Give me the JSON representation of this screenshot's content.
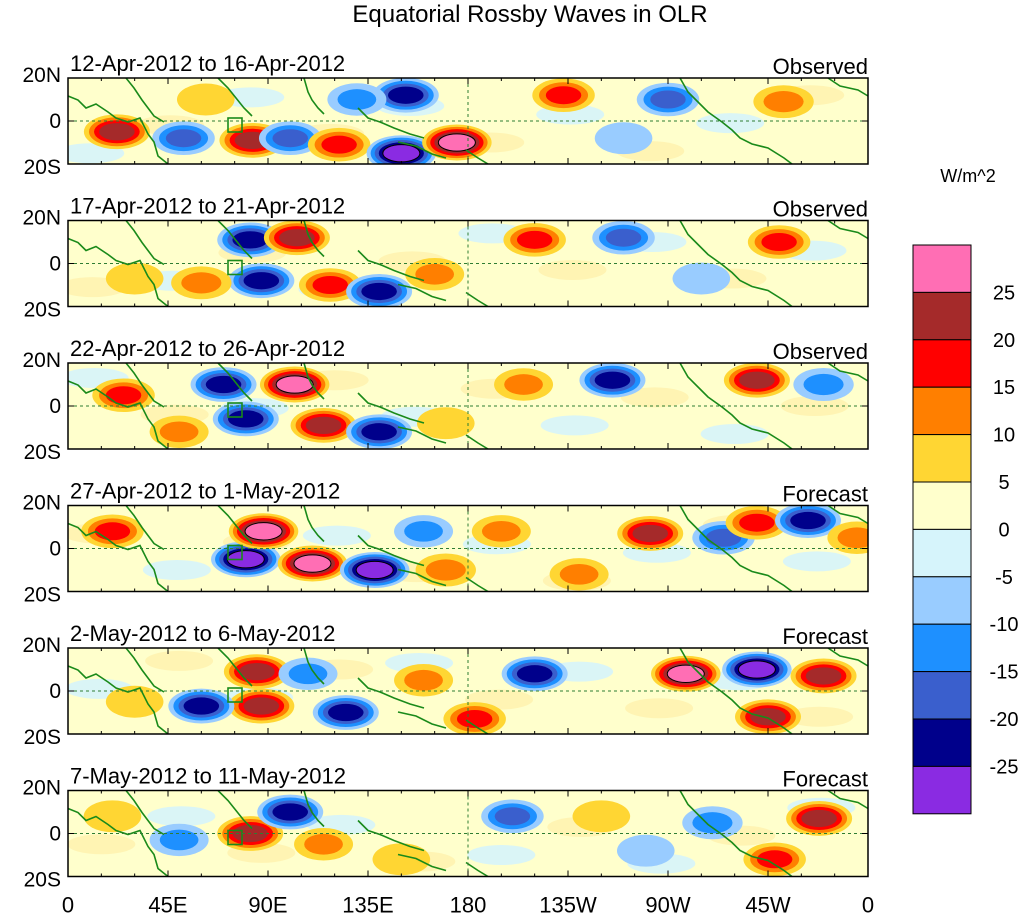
{
  "chart_data": {
    "type": "heatmap",
    "title": "Equatorial Rossby Waves in OLR",
    "units_label": "W/m^2",
    "latitude_ticks": [
      "20N",
      "0",
      "20S"
    ],
    "longitude_ticks": [
      "0",
      "45E",
      "90E",
      "135E",
      "180",
      "135W",
      "90W",
      "45W",
      "0"
    ],
    "longitude_range": [
      0,
      360
    ],
    "latitude_range": [
      -20,
      20
    ],
    "colorbar": {
      "tick_labels": [
        "25",
        "20",
        "15",
        "10",
        "5",
        "0",
        "-5",
        "-10",
        "-15",
        "-20",
        "-25"
      ],
      "colors": [
        "#ff6eb4",
        "#a52a2a",
        "#ff0000",
        "#ff7f00",
        "#ffd633",
        "#ffffcc",
        "#d6f4fb",
        "#99ccff",
        "#1e90ff",
        "#3a5fcd",
        "#00008b",
        "#8a2be2"
      ]
    },
    "panels": [
      {
        "label": "12-Apr-2012 to 16-Apr-2012",
        "status": "Observed",
        "anomalies": [
          {
            "lon": 22,
            "lat": -5,
            "value": 20
          },
          {
            "lon": 52,
            "lat": -8,
            "value": -15
          },
          {
            "lon": 83,
            "lat": -9,
            "value": 20
          },
          {
            "lon": 100,
            "lat": -8,
            "value": -15
          },
          {
            "lon": 122,
            "lat": -11,
            "value": 15
          },
          {
            "lon": 150,
            "lat": -15,
            "value": -25
          },
          {
            "lon": 175,
            "lat": -10,
            "value": 25
          },
          {
            "lon": 152,
            "lat": 12,
            "value": -20
          },
          {
            "lon": 223,
            "lat": 12,
            "value": 15
          },
          {
            "lon": 270,
            "lat": 10,
            "value": -15
          },
          {
            "lon": 322,
            "lat": 9,
            "value": 12
          },
          {
            "lon": 130,
            "lat": 10,
            "value": -10
          },
          {
            "lon": 62,
            "lat": 10,
            "value": 8
          },
          {
            "lon": 250,
            "lat": -8,
            "value": -8
          }
        ]
      },
      {
        "label": "17-Apr-2012 to 21-Apr-2012",
        "status": "Observed",
        "anomalies": [
          {
            "lon": 82,
            "lat": 11,
            "value": -20
          },
          {
            "lon": 103,
            "lat": 12,
            "value": 20
          },
          {
            "lon": 87,
            "lat": -8,
            "value": -20
          },
          {
            "lon": 118,
            "lat": -10,
            "value": 15
          },
          {
            "lon": 140,
            "lat": -13,
            "value": -20
          },
          {
            "lon": 210,
            "lat": 11,
            "value": 15
          },
          {
            "lon": 250,
            "lat": 12,
            "value": -15
          },
          {
            "lon": 320,
            "lat": 10,
            "value": 15
          },
          {
            "lon": 30,
            "lat": -7,
            "value": 8
          },
          {
            "lon": 60,
            "lat": -9,
            "value": 12
          },
          {
            "lon": 165,
            "lat": -5,
            "value": 10
          },
          {
            "lon": 285,
            "lat": -7,
            "value": -8
          }
        ]
      },
      {
        "label": "22-Apr-2012 to 26-Apr-2012",
        "status": "Observed",
        "anomalies": [
          {
            "lon": 25,
            "lat": 5,
            "value": 15
          },
          {
            "lon": 70,
            "lat": 10,
            "value": -20
          },
          {
            "lon": 102,
            "lat": 10,
            "value": 25
          },
          {
            "lon": 80,
            "lat": -6,
            "value": -20
          },
          {
            "lon": 115,
            "lat": -9,
            "value": 20
          },
          {
            "lon": 140,
            "lat": -12,
            "value": -20
          },
          {
            "lon": 205,
            "lat": 10,
            "value": 10
          },
          {
            "lon": 245,
            "lat": 12,
            "value": -20
          },
          {
            "lon": 310,
            "lat": 12,
            "value": 20
          },
          {
            "lon": 340,
            "lat": 10,
            "value": -12
          },
          {
            "lon": 50,
            "lat": -12,
            "value": 10
          },
          {
            "lon": 170,
            "lat": -8,
            "value": 8
          }
        ]
      },
      {
        "label": "27-Apr-2012 to 1-May-2012",
        "status": "Forecast",
        "anomalies": [
          {
            "lon": 20,
            "lat": 8,
            "value": 15
          },
          {
            "lon": 80,
            "lat": -5,
            "value": -25
          },
          {
            "lon": 88,
            "lat": 8,
            "value": 25
          },
          {
            "lon": 110,
            "lat": -7,
            "value": 25
          },
          {
            "lon": 138,
            "lat": -10,
            "value": -25
          },
          {
            "lon": 160,
            "lat": 8,
            "value": -10
          },
          {
            "lon": 195,
            "lat": 8,
            "value": 10
          },
          {
            "lon": 262,
            "lat": 7,
            "value": 20
          },
          {
            "lon": 295,
            "lat": 5,
            "value": -15
          },
          {
            "lon": 310,
            "lat": 12,
            "value": 15
          },
          {
            "lon": 333,
            "lat": 13,
            "value": -20
          },
          {
            "lon": 170,
            "lat": -10,
            "value": 12
          },
          {
            "lon": 230,
            "lat": -12,
            "value": 10
          },
          {
            "lon": 355,
            "lat": 5,
            "value": 10
          }
        ]
      },
      {
        "label": "2-May-2012 to 6-May-2012",
        "status": "Forecast",
        "anomalies": [
          {
            "lon": 85,
            "lat": 9,
            "value": 20
          },
          {
            "lon": 87,
            "lat": -7,
            "value": 20
          },
          {
            "lon": 60,
            "lat": -7,
            "value": -20
          },
          {
            "lon": 125,
            "lat": -10,
            "value": -20
          },
          {
            "lon": 108,
            "lat": 8,
            "value": -10
          },
          {
            "lon": 160,
            "lat": 5,
            "value": 10
          },
          {
            "lon": 183,
            "lat": -13,
            "value": 15
          },
          {
            "lon": 210,
            "lat": 8,
            "value": -20
          },
          {
            "lon": 278,
            "lat": 8,
            "value": 25
          },
          {
            "lon": 310,
            "lat": 10,
            "value": -25
          },
          {
            "lon": 340,
            "lat": 7,
            "value": 20
          },
          {
            "lon": 315,
            "lat": -12,
            "value": 20
          },
          {
            "lon": 30,
            "lat": -5,
            "value": 8
          }
        ]
      },
      {
        "label": "7-May-2012 to 11-May-2012",
        "status": "Forecast",
        "anomalies": [
          {
            "lon": 82,
            "lat": 0,
            "value": 20
          },
          {
            "lon": 100,
            "lat": 10,
            "value": -20
          },
          {
            "lon": 115,
            "lat": -5,
            "value": 10
          },
          {
            "lon": 50,
            "lat": -3,
            "value": -10
          },
          {
            "lon": 200,
            "lat": 8,
            "value": -15
          },
          {
            "lon": 240,
            "lat": 8,
            "value": 8
          },
          {
            "lon": 290,
            "lat": 5,
            "value": -12
          },
          {
            "lon": 318,
            "lat": -12,
            "value": 15
          },
          {
            "lon": 338,
            "lat": 7,
            "value": 20
          },
          {
            "lon": 150,
            "lat": -12,
            "value": 8
          },
          {
            "lon": 260,
            "lat": -8,
            "value": -8
          },
          {
            "lon": 20,
            "lat": 8,
            "value": 8
          }
        ]
      }
    ]
  }
}
